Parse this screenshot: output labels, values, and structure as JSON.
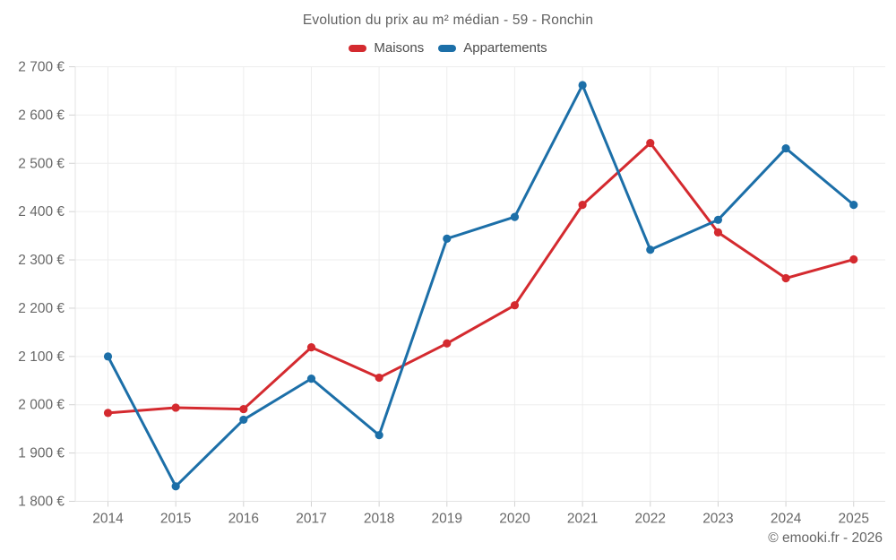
{
  "title": "Evolution du prix au m² médian - 59 - Ronchin",
  "legend": {
    "items": [
      {
        "label": "Maisons",
        "color": "#d42a2f"
      },
      {
        "label": "Appartements",
        "color": "#1c6fa8"
      }
    ]
  },
  "footer": {
    "copyright": "© emooki.fr - 2026"
  },
  "colors": {
    "grid": "#ededed",
    "tick": "#d2d2d2",
    "axis": "#e3e3e3",
    "axis_text": "#686868",
    "title_text": "#616161"
  },
  "chart_data": {
    "type": "line",
    "title": "Evolution du prix au m² médian - 59 - Ronchin",
    "categories": [
      "2014",
      "2015",
      "2016",
      "2017",
      "2018",
      "2019",
      "2020",
      "2021",
      "2022",
      "2023",
      "2024",
      "2025"
    ],
    "series": [
      {
        "name": "Maisons",
        "color": "#d42a2f",
        "values": [
          1983,
          1994,
          1991,
          2119,
          2056,
          2127,
          2206,
          2414,
          2542,
          2357,
          2262,
          2301
        ]
      },
      {
        "name": "Appartements",
        "color": "#1c6fa8",
        "values": [
          2100,
          1831,
          1969,
          2054,
          1937,
          2344,
          2389,
          2662,
          2321,
          2383,
          2531,
          2414
        ]
      }
    ],
    "ylim": [
      1800,
      2700
    ],
    "ytick_step": 100,
    "ytick_labels": [
      "1 800 €",
      "1 900 €",
      "2 000 €",
      "2 100 €",
      "2 200 €",
      "2 300 €",
      "2 400 €",
      "2 500 €",
      "2 600 €",
      "2 700 €"
    ],
    "xlabel": "",
    "ylabel": "",
    "grid": true,
    "legend_position": "top"
  }
}
